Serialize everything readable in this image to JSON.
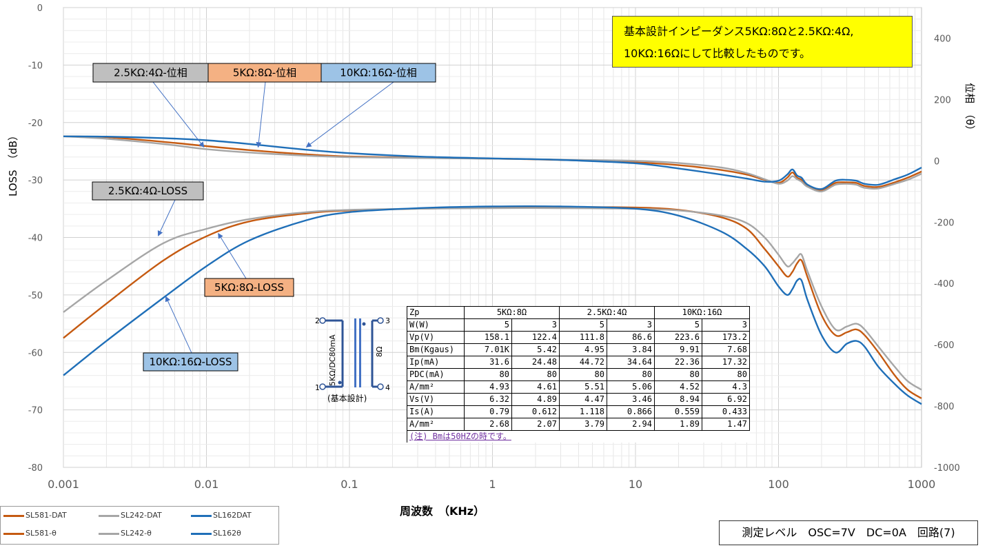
{
  "chart_data": {
    "type": "line",
    "x_scale": "log",
    "xlim": [
      0.001,
      1000
    ],
    "x_ticks": [
      "0.001",
      "0.01",
      "0.1",
      "1",
      "10",
      "100",
      "1000"
    ],
    "x_tick_values": [
      0.001,
      0.01,
      0.1,
      1,
      10,
      100,
      1000
    ],
    "xlabel": "周波数　（KHz）",
    "ylabel": "LOSS　（dB）",
    "ylim": [
      -80,
      0
    ],
    "y_ticks": [
      "0",
      "-10",
      "-20",
      "-30",
      "-40",
      "-50",
      "-60",
      "-70",
      "-80"
    ],
    "y_tick_values": [
      0,
      -10,
      -20,
      -30,
      -40,
      -50,
      -60,
      -70,
      -80
    ],
    "y2label": "位相　（θ）",
    "y2lim": [
      -1000,
      500
    ],
    "y2_ticks": [
      "400",
      "200",
      "0",
      "-200",
      "-400",
      "-600",
      "-800",
      "-1000"
    ],
    "y2_tick_values": [
      400,
      200,
      0,
      -200,
      -400,
      -600,
      -800,
      -1000
    ],
    "grid": true,
    "legend_position": "bottom-left",
    "series": [
      {
        "name": "SL581-DAT",
        "axis": "left",
        "color": "#c55a11",
        "points": [
          [
            0.001,
            -57.5
          ],
          [
            0.002,
            -51.5
          ],
          [
            0.005,
            -44
          ],
          [
            0.01,
            -39.8
          ],
          [
            0.02,
            -37.2
          ],
          [
            0.05,
            -35.8
          ],
          [
            0.1,
            -35.3
          ],
          [
            0.3,
            -35
          ],
          [
            1,
            -34.8
          ],
          [
            3,
            -34.7
          ],
          [
            10,
            -34.8
          ],
          [
            20,
            -35.2
          ],
          [
            40,
            -36.5
          ],
          [
            60,
            -38.5
          ],
          [
            80,
            -42
          ],
          [
            100,
            -45
          ],
          [
            115,
            -46.8
          ],
          [
            125,
            -46
          ],
          [
            135,
            -44.5
          ],
          [
            145,
            -44
          ],
          [
            160,
            -47
          ],
          [
            200,
            -53.5
          ],
          [
            250,
            -57
          ],
          [
            300,
            -56.5
          ],
          [
            350,
            -56
          ],
          [
            400,
            -57
          ],
          [
            500,
            -60
          ],
          [
            650,
            -64
          ],
          [
            800,
            -66.5
          ],
          [
            1000,
            -68
          ]
        ]
      },
      {
        "name": "SL242-DAT",
        "axis": "left",
        "color": "#a6a6a6",
        "points": [
          [
            0.001,
            -53
          ],
          [
            0.002,
            -47.5
          ],
          [
            0.005,
            -41
          ],
          [
            0.01,
            -38.5
          ],
          [
            0.02,
            -36.8
          ],
          [
            0.05,
            -35.6
          ],
          [
            0.1,
            -35.2
          ],
          [
            0.3,
            -35
          ],
          [
            1,
            -34.9
          ],
          [
            3,
            -34.9
          ],
          [
            10,
            -35
          ],
          [
            20,
            -35.3
          ],
          [
            40,
            -36.2
          ],
          [
            60,
            -37.5
          ],
          [
            80,
            -40
          ],
          [
            100,
            -43
          ],
          [
            115,
            -45
          ],
          [
            125,
            -44.5
          ],
          [
            135,
            -43.5
          ],
          [
            145,
            -43
          ],
          [
            160,
            -46
          ],
          [
            200,
            -52
          ],
          [
            250,
            -56
          ],
          [
            300,
            -55.5
          ],
          [
            350,
            -55
          ],
          [
            400,
            -56
          ],
          [
            500,
            -59
          ],
          [
            650,
            -62.5
          ],
          [
            800,
            -65
          ],
          [
            1000,
            -66.5
          ]
        ]
      },
      {
        "name": "SL162DAT",
        "axis": "left",
        "color": "#1f6fb8",
        "points": [
          [
            0.001,
            -64
          ],
          [
            0.002,
            -58
          ],
          [
            0.005,
            -50.5
          ],
          [
            0.01,
            -45
          ],
          [
            0.02,
            -40.5
          ],
          [
            0.05,
            -37
          ],
          [
            0.1,
            -35.6
          ],
          [
            0.3,
            -34.9
          ],
          [
            1,
            -34.6
          ],
          [
            3,
            -34.6
          ],
          [
            10,
            -35
          ],
          [
            20,
            -36.2
          ],
          [
            40,
            -39
          ],
          [
            60,
            -42
          ],
          [
            80,
            -45
          ],
          [
            100,
            -48.5
          ],
          [
            115,
            -50
          ],
          [
            125,
            -49
          ],
          [
            135,
            -47.5
          ],
          [
            145,
            -47.5
          ],
          [
            160,
            -51
          ],
          [
            200,
            -57
          ],
          [
            250,
            -60
          ],
          [
            300,
            -58.5
          ],
          [
            350,
            -58
          ],
          [
            400,
            -59
          ],
          [
            500,
            -62.5
          ],
          [
            650,
            -65.5
          ],
          [
            800,
            -67.5
          ],
          [
            1000,
            -69
          ]
        ]
      },
      {
        "name": "SL581-θ",
        "axis": "right",
        "color": "#c55a11",
        "points": [
          [
            0.001,
            80
          ],
          [
            0.002,
            77
          ],
          [
            0.005,
            62
          ],
          [
            0.01,
            48
          ],
          [
            0.02,
            35
          ],
          [
            0.05,
            21
          ],
          [
            0.1,
            14
          ],
          [
            0.3,
            10
          ],
          [
            1,
            7
          ],
          [
            3,
            3
          ],
          [
            10,
            -5
          ],
          [
            20,
            -14
          ],
          [
            40,
            -30
          ],
          [
            60,
            -45
          ],
          [
            80,
            -62
          ],
          [
            100,
            -72
          ],
          [
            115,
            -55
          ],
          [
            125,
            -38
          ],
          [
            135,
            -55
          ],
          [
            145,
            -62
          ],
          [
            160,
            -82
          ],
          [
            200,
            -95
          ],
          [
            250,
            -72
          ],
          [
            300,
            -70
          ],
          [
            350,
            -72
          ],
          [
            400,
            -82
          ],
          [
            500,
            -85
          ],
          [
            650,
            -70
          ],
          [
            800,
            -55
          ],
          [
            1000,
            -35
          ]
        ]
      },
      {
        "name": "SL242-θ",
        "axis": "right",
        "color": "#a6a6a6",
        "points": [
          [
            0.001,
            80
          ],
          [
            0.002,
            72
          ],
          [
            0.005,
            55
          ],
          [
            0.01,
            38
          ],
          [
            0.02,
            27
          ],
          [
            0.05,
            17
          ],
          [
            0.1,
            12
          ],
          [
            0.3,
            9
          ],
          [
            1,
            7
          ],
          [
            3,
            4
          ],
          [
            10,
            0
          ],
          [
            20,
            -7
          ],
          [
            40,
            -22
          ],
          [
            60,
            -40
          ],
          [
            80,
            -60
          ],
          [
            100,
            -75
          ],
          [
            115,
            -65
          ],
          [
            125,
            -50
          ],
          [
            135,
            -60
          ],
          [
            145,
            -68
          ],
          [
            160,
            -85
          ],
          [
            200,
            -100
          ],
          [
            250,
            -78
          ],
          [
            300,
            -75
          ],
          [
            350,
            -78
          ],
          [
            400,
            -88
          ],
          [
            500,
            -90
          ],
          [
            650,
            -75
          ],
          [
            800,
            -62
          ],
          [
            1000,
            -42
          ]
        ]
      },
      {
        "name": "SL162θ",
        "axis": "right",
        "color": "#1f6fb8",
        "points": [
          [
            0.001,
            80
          ],
          [
            0.002,
            79
          ],
          [
            0.005,
            74
          ],
          [
            0.01,
            67
          ],
          [
            0.02,
            55
          ],
          [
            0.05,
            36
          ],
          [
            0.1,
            25
          ],
          [
            0.3,
            14
          ],
          [
            1,
            8
          ],
          [
            3,
            3
          ],
          [
            10,
            -8
          ],
          [
            20,
            -25
          ],
          [
            40,
            -45
          ],
          [
            60,
            -58
          ],
          [
            80,
            -68
          ],
          [
            100,
            -65
          ],
          [
            115,
            -45
          ],
          [
            125,
            -28
          ],
          [
            135,
            -48
          ],
          [
            145,
            -55
          ],
          [
            160,
            -78
          ],
          [
            200,
            -92
          ],
          [
            250,
            -65
          ],
          [
            300,
            -62
          ],
          [
            350,
            -65
          ],
          [
            400,
            -75
          ],
          [
            500,
            -78
          ],
          [
            650,
            -60
          ],
          [
            800,
            -45
          ],
          [
            1000,
            -22
          ]
        ]
      }
    ],
    "annotations": [
      {
        "text": "2.5KΩ:4Ω-位相",
        "color": "#bfbfbf",
        "arrow_to": [
          0.0096,
          45
        ]
      },
      {
        "text": "5KΩ:8Ω-位相",
        "color": "#f4b183",
        "arrow_to": [
          0.023,
          45
        ]
      },
      {
        "text": "10KΩ:16Ω-位相",
        "color": "#9dc3e6",
        "arrow_to": [
          0.05,
          45
        ]
      },
      {
        "text": "2.5KΩ:4Ω-LOSS",
        "color": "#bfbfbf",
        "arrow_to": [
          0.0046,
          -39.7
        ]
      },
      {
        "text": "5KΩ:8Ω-LOSS",
        "color": "#f4b183",
        "arrow_to": [
          0.0121,
          -39.3
        ]
      },
      {
        "text": "10KΩ:16Ω-LOSS",
        "color": "#9dc3e6",
        "arrow_to": [
          0.0052,
          -50.3
        ]
      }
    ]
  },
  "note": {
    "line1": "基本設計インピーダンス5KΩ:8Ωと2.5KΩ:4Ω,",
    "line2": "10KΩ:16Ωにして比較したものです。"
  },
  "transformer": {
    "pin2": "2",
    "pin3": "3",
    "pin1": "1",
    "pin4": "4",
    "primary": "5KΩ/DC80mA",
    "secondary": "8Ω",
    "caption": "(基本設計)"
  },
  "table": {
    "headers": [
      "Zp",
      "5KΩ:8Ω",
      "2.5KΩ:4Ω",
      "10KΩ:16Ω"
    ],
    "rows": [
      {
        "label": "W(W)",
        "values": [
          "5",
          "3",
          "5",
          "3",
          "5",
          "3"
        ]
      },
      {
        "label": "Vp(V)",
        "values": [
          "158.1",
          "122.4",
          "111.8",
          "86.6",
          "223.6",
          "173.2"
        ]
      },
      {
        "label": "Bm(Kgaus)",
        "values": [
          "7.01K",
          "5.42",
          "4.95",
          "3.84",
          "9.91",
          "7.68"
        ]
      },
      {
        "label": "Ip(mA)",
        "values": [
          "31.6",
          "24.48",
          "44.72",
          "34.64",
          "22.36",
          "17.32"
        ]
      },
      {
        "label": "PDC(mA)",
        "values": [
          "80",
          "80",
          "80",
          "80",
          "80",
          "80"
        ]
      },
      {
        "label": "A/mm²",
        "values": [
          "4.93",
          "4.61",
          "5.51",
          "5.06",
          "4.52",
          "4.3"
        ]
      },
      {
        "label": "Vs(V)",
        "values": [
          "6.32",
          "4.89",
          "4.47",
          "3.46",
          "8.94",
          "6.92"
        ]
      },
      {
        "label": "Is(A)",
        "values": [
          "0.79",
          "0.612",
          "1.118",
          "0.866",
          "0.559",
          "0.433"
        ]
      },
      {
        "label": "A/mm²",
        "values": [
          "2.68",
          "2.07",
          "3.79",
          "2.94",
          "1.89",
          "1.47"
        ]
      }
    ],
    "footnote": "(注) Bmは50HZの時です。"
  },
  "legend": [
    {
      "label": "SL581-DAT",
      "color": "#c55a11"
    },
    {
      "label": "SL242-DAT",
      "color": "#a6a6a6"
    },
    {
      "label": "SL162DAT",
      "color": "#1f6fb8"
    },
    {
      "label": "SL581-θ",
      "color": "#c55a11"
    },
    {
      "label": "SL242-θ",
      "color": "#a6a6a6"
    },
    {
      "label": "SL162θ",
      "color": "#1f6fb8"
    }
  ],
  "measurement": "測定レベル　OSC=7V　DC=0A　回路(7)"
}
